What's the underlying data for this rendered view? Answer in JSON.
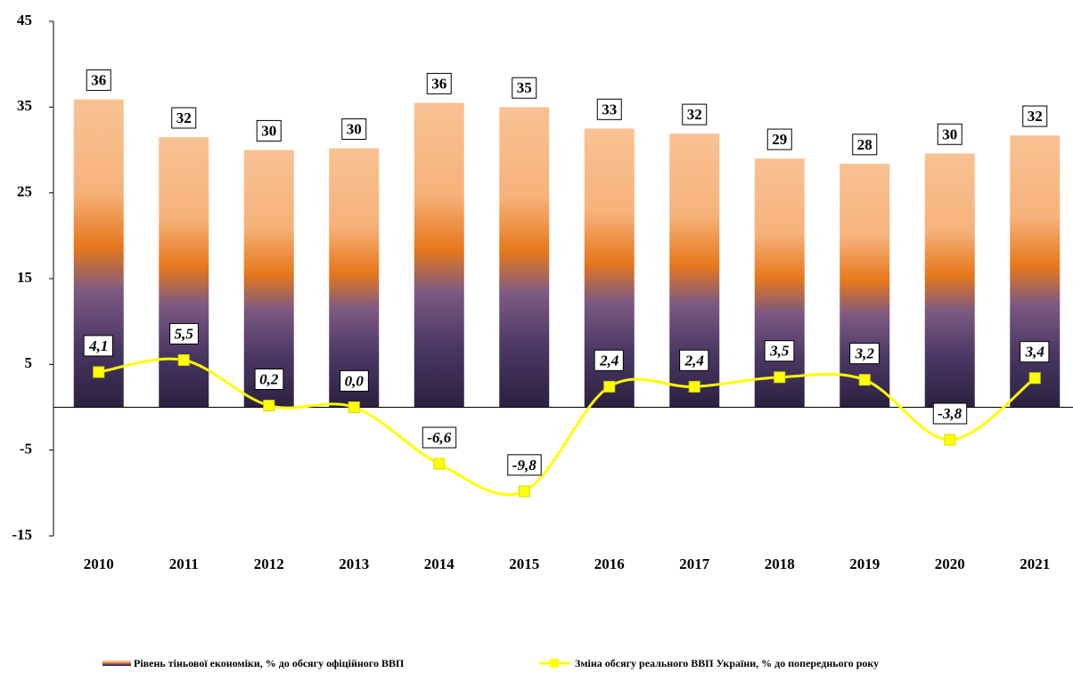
{
  "chart_data": {
    "type": "bar_line",
    "categories": [
      "2010",
      "2011",
      "2012",
      "2013",
      "2014",
      "2015",
      "2016",
      "2017",
      "2018",
      "2019",
      "2020",
      "2021"
    ],
    "series": [
      {
        "name": "Рівень тіньової економіки, % до обсягу офіційного ВВП",
        "type": "bar",
        "color": "#e87f22",
        "values": [
          35.9,
          31.5,
          30.0,
          30.2,
          35.5,
          35.0,
          32.5,
          31.9,
          29.0,
          28.4,
          29.6,
          31.7
        ],
        "value_labels": [
          "36",
          "32",
          "30",
          "30",
          "36",
          "35",
          "33",
          "32",
          "29",
          "28",
          "30",
          "32"
        ]
      },
      {
        "name": "Зміна обсягу реального ВВП України, % до попереднього року",
        "type": "line",
        "color": "#ffff00",
        "values": [
          4.1,
          5.5,
          0.2,
          0.0,
          -6.6,
          -9.8,
          2.4,
          2.4,
          3.5,
          3.2,
          -3.8,
          3.4
        ],
        "value_labels": [
          "4,1",
          "5,5",
          "0,2",
          "0,0",
          "-6,6",
          "-9,8",
          "2,4",
          "2,4",
          "3,5",
          "3,2",
          "-3,8",
          "3,4"
        ]
      }
    ],
    "ylim": [
      -15,
      45
    ],
    "yticks": [
      -15,
      -5,
      5,
      15,
      25,
      35,
      45
    ]
  }
}
